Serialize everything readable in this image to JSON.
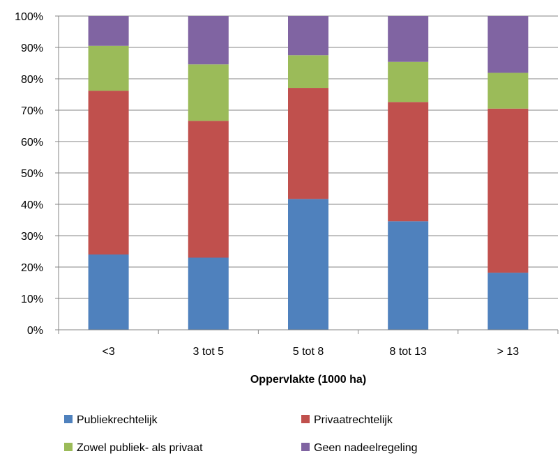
{
  "chart_data": {
    "type": "bar",
    "stacked": "percent",
    "title": "",
    "xlabel": "Oppervlakte (1000 ha)",
    "ylabel": "",
    "ylim": [
      0,
      100
    ],
    "y_tick_labels": [
      "0%",
      "10%",
      "20%",
      "30%",
      "40%",
      "50%",
      "60%",
      "70%",
      "80%",
      "90%",
      "100%"
    ],
    "categories": [
      "<3",
      "3 tot 5",
      "5 tot 8",
      "8 tot 13",
      "> 13"
    ],
    "series": [
      {
        "name": "Publiekrechtelijk",
        "color": "#4F81BD",
        "values": [
          24,
          23,
          41.7,
          34.6,
          18.2
        ]
      },
      {
        "name": "Privaatrechtelijk",
        "color": "#C0504D",
        "values": [
          52.2,
          43.6,
          35.4,
          38,
          52.3
        ]
      },
      {
        "name": "Zowel publiek- als privaat",
        "color": "#9BBB59",
        "values": [
          14.3,
          18,
          10.4,
          12.8,
          11.4
        ]
      },
      {
        "name": "Geen nadeelregeling",
        "color": "#8064A2",
        "values": [
          9.5,
          15.4,
          12.5,
          14.6,
          18.1
        ]
      }
    ],
    "grid": true,
    "legend_position": "bottom"
  }
}
